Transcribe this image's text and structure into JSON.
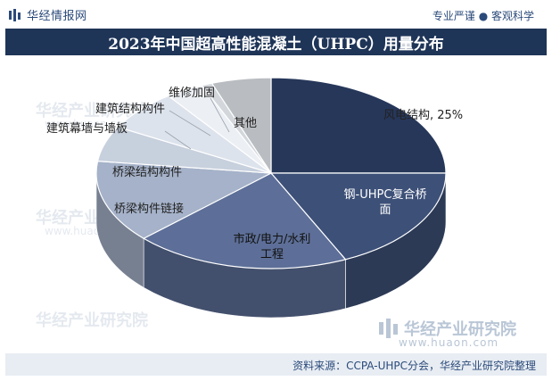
{
  "header": {
    "brand": "华经情报网",
    "slogan": "专业严谨 ● 客观科学"
  },
  "title": "2023年中国超高性能混凝土（UHPC）用量分布",
  "source": "资料来源：CCPA-UHPC分会，华经产业研究院整理",
  "watermark": {
    "brand": "华经产业研究院",
    "url": "www.huaon.com"
  },
  "chart_data": {
    "type": "pie",
    "style": "3d",
    "slices": [
      {
        "label": "风电结构, 25%",
        "value": 25,
        "color": "#26375a"
      },
      {
        "label": "钢-UHPC复合桥面",
        "value": 18,
        "color": "#3d5078"
      },
      {
        "label": "市政/电力/水利工程",
        "value": 20,
        "color": "#5d6f98"
      },
      {
        "label": "桥梁构件链接",
        "value": 14,
        "color": "#a5b2c9"
      },
      {
        "label": "桥梁结构构件",
        "value": 6,
        "color": "#c7d0dd"
      },
      {
        "label": "建筑幕墙与墙板",
        "value": 7,
        "color": "#dde3ec"
      },
      {
        "label": "建筑结构构件",
        "value": 3.5,
        "color": "#eceff4"
      },
      {
        "label": "维修加固",
        "value": 1,
        "color": "#d3d7dc"
      },
      {
        "label": "其他",
        "value": 5.5,
        "color": "#b9bcc0"
      }
    ]
  }
}
